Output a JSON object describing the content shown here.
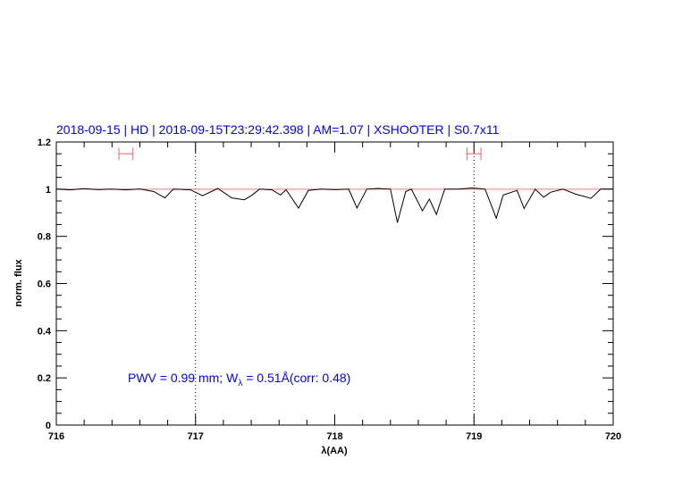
{
  "chart_data": {
    "type": "line",
    "title": "2018-09-15 | HD | 2018-09-15T23:29:42.398 | AM=1.07 | XSHOOTER | S0.7x11",
    "xlabel": "λ(AA)",
    "ylabel": "norm. flux",
    "xlim": [
      716,
      720
    ],
    "ylim": [
      0,
      1.2
    ],
    "x_ticks": [
      "716",
      "717",
      "718",
      "719",
      "720"
    ],
    "y_ticks": [
      "0",
      "0.2",
      "0.4",
      "0.6",
      "0.8",
      "1",
      "1.2"
    ],
    "grid": false,
    "continuum_level": 1.0,
    "vertical_markers": [
      717,
      719
    ],
    "error_bars": [
      {
        "x_range": [
          716.45,
          716.55
        ],
        "y": 1.15
      },
      {
        "x_range": [
          718.95,
          719.05
        ],
        "y": 1.15
      }
    ],
    "annotation": {
      "prefix": "PWV = 0.99 mm; W",
      "subscript": "λ",
      "suffix": " = 0.51Å(corr: 0.48)"
    },
    "series": [
      {
        "x": [
          716.0,
          716.1,
          716.2,
          716.3,
          716.4,
          716.5,
          716.6,
          716.7,
          716.78,
          716.84,
          716.9,
          716.965,
          717.05,
          717.16,
          717.26,
          717.35,
          717.4,
          717.46,
          717.55,
          717.61,
          717.65,
          717.74,
          717.81,
          717.9,
          718.0,
          718.1,
          718.16,
          718.23,
          718.31,
          718.4,
          718.45,
          718.51,
          718.55,
          718.63,
          718.68,
          718.73,
          718.79,
          718.89,
          718.99,
          719.08,
          719.16,
          719.21,
          719.31,
          719.36,
          719.44,
          719.5,
          719.55,
          719.64,
          719.73,
          719.84,
          719.91,
          720.0
        ],
        "y": [
          1.0,
          0.997,
          1.002,
          0.998,
          1.0,
          0.997,
          1.001,
          0.99,
          0.963,
          1.0,
          0.999,
          0.997,
          0.972,
          1.003,
          0.963,
          0.955,
          0.972,
          1.0,
          0.997,
          0.975,
          0.998,
          0.92,
          0.995,
          1.0,
          0.998,
          1.0,
          0.92,
          1.0,
          1.003,
          1.0,
          0.858,
          0.99,
          1.0,
          0.908,
          0.958,
          0.893,
          1.0,
          1.0,
          1.005,
          1.0,
          0.877,
          0.975,
          0.995,
          0.918,
          1.0,
          0.966,
          0.987,
          1.0,
          0.979,
          0.961,
          1.0,
          1.0
        ]
      }
    ],
    "colors": {
      "spectrum": "#000000",
      "continuum": "#e88080",
      "error_bar": "#ff6060",
      "text": "#0000ff"
    }
  }
}
